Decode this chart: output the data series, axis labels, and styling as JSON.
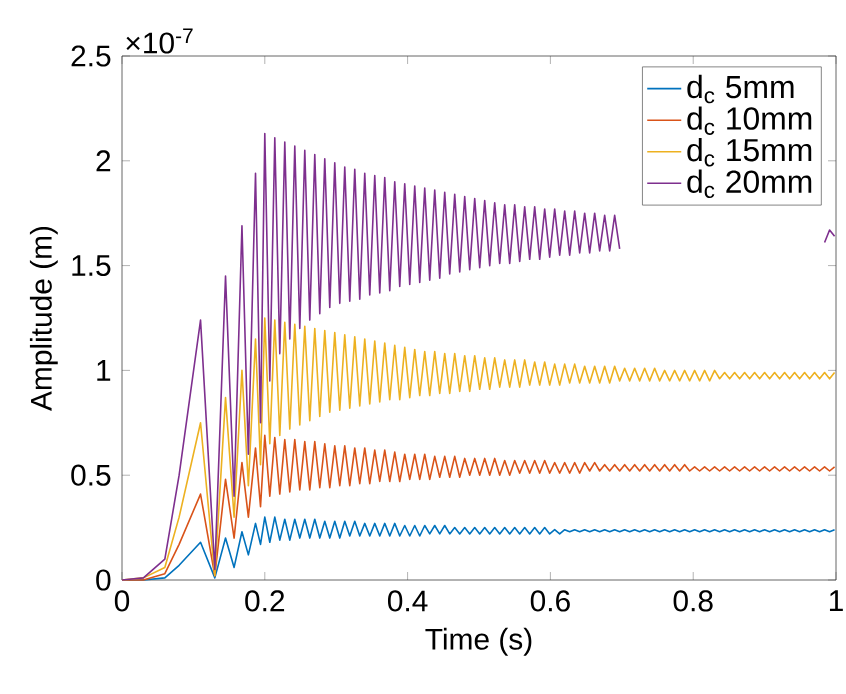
{
  "chart_data": {
    "type": "line",
    "xlabel": "Time (s)",
    "ylabel": "Amplitude (m)",
    "annotations": [
      "×10$^{-7}$"
    ],
    "xlim": [
      0,
      1
    ],
    "ylim": [
      0,
      2.5
    ],
    "xticks": [
      0,
      0.2,
      0.4,
      0.6,
      0.8,
      1
    ],
    "yticks": [
      0,
      0.5,
      1,
      1.5,
      2,
      2.5
    ],
    "grid": false,
    "legend": "top right",
    "x": [
      0,
      0.03,
      0.06,
      0.08,
      0.11,
      0.13,
      0.145,
      0.157,
      0.168,
      0.177,
      0.187,
      0.194,
      0.2,
      0.207,
      0.214,
      0.221,
      0.228,
      0.235,
      0.242,
      0.249,
      0.256,
      0.263,
      0.27,
      0.277,
      0.284,
      0.291,
      0.298,
      0.305,
      0.312,
      0.319,
      0.326,
      0.333,
      0.34,
      0.347,
      0.354,
      0.361,
      0.368,
      0.375,
      0.382,
      0.389,
      0.396,
      0.403,
      0.41,
      0.417,
      0.424,
      0.431,
      0.438,
      0.445,
      0.452,
      0.459,
      0.466,
      0.473,
      0.48,
      0.487,
      0.494,
      0.501,
      0.508,
      0.515,
      0.522,
      0.529,
      0.536,
      0.543,
      0.55,
      0.557,
      0.564,
      0.571,
      0.578,
      0.585,
      0.592,
      0.599,
      0.606,
      0.613,
      0.62,
      0.627,
      0.634,
      0.641,
      0.648,
      0.655,
      0.662,
      0.669,
      0.676,
      0.683,
      0.69,
      0.697,
      0.704,
      0.711,
      0.718,
      0.725,
      0.732,
      0.739,
      0.746,
      0.753,
      0.76,
      0.767,
      0.774,
      0.781,
      0.788,
      0.795,
      0.802,
      0.809,
      0.816,
      0.823,
      0.83,
      0.837,
      0.844,
      0.851,
      0.858,
      0.865,
      0.872,
      0.879,
      0.886,
      0.893,
      0.9,
      0.907,
      0.914,
      0.921,
      0.928,
      0.935,
      0.942,
      0.949,
      0.956,
      0.963,
      0.97,
      0.977,
      0.984,
      0.991,
      0.998
    ],
    "series": [
      {
        "name": "d$_{c}$ 5mm",
        "color": "#0072bd",
        "values": [
          0,
          0,
          0.01,
          0.07,
          0.18,
          0.01,
          0.2,
          0.06,
          0.23,
          0.12,
          0.27,
          0.17,
          0.3,
          0.18,
          0.3,
          0.19,
          0.29,
          0.19,
          0.29,
          0.2,
          0.29,
          0.2,
          0.29,
          0.2,
          0.28,
          0.2,
          0.28,
          0.2,
          0.28,
          0.21,
          0.28,
          0.21,
          0.27,
          0.21,
          0.27,
          0.21,
          0.27,
          0.21,
          0.27,
          0.21,
          0.26,
          0.21,
          0.26,
          0.21,
          0.26,
          0.22,
          0.26,
          0.22,
          0.26,
          0.22,
          0.25,
          0.22,
          0.25,
          0.22,
          0.25,
          0.22,
          0.25,
          0.22,
          0.25,
          0.22,
          0.25,
          0.22,
          0.25,
          0.22,
          0.25,
          0.22,
          0.25,
          0.22,
          0.25,
          0.22,
          0.24,
          0.22,
          0.24,
          0.23,
          0.24,
          0.23,
          0.24,
          0.23,
          0.24,
          0.23,
          0.24,
          0.23,
          0.24,
          0.23,
          0.24,
          0.23,
          0.24,
          0.23,
          0.24,
          0.23,
          0.24,
          0.23,
          0.24,
          0.23,
          0.24,
          0.23,
          0.24,
          0.23,
          0.24,
          0.23,
          0.24,
          0.23,
          0.24,
          0.23,
          0.24,
          0.23,
          0.24,
          0.23,
          0.24,
          0.23,
          0.24,
          0.23,
          0.24,
          0.23,
          0.24,
          0.23,
          0.24,
          0.23,
          0.24,
          0.23,
          0.24,
          0.23,
          0.24,
          0.23,
          0.24,
          0.23,
          0.24
        ]
      },
      {
        "name": "d$_{c}$ 10mm",
        "color": "#d95319",
        "values": [
          0,
          0,
          0.03,
          0.17,
          0.41,
          0.02,
          0.48,
          0.2,
          0.56,
          0.3,
          0.63,
          0.35,
          0.69,
          0.4,
          0.68,
          0.41,
          0.67,
          0.42,
          0.67,
          0.43,
          0.66,
          0.43,
          0.66,
          0.44,
          0.65,
          0.44,
          0.64,
          0.45,
          0.64,
          0.45,
          0.63,
          0.46,
          0.63,
          0.46,
          0.62,
          0.47,
          0.62,
          0.47,
          0.61,
          0.47,
          0.6,
          0.48,
          0.6,
          0.48,
          0.6,
          0.48,
          0.59,
          0.49,
          0.59,
          0.49,
          0.59,
          0.49,
          0.58,
          0.5,
          0.58,
          0.5,
          0.58,
          0.5,
          0.58,
          0.5,
          0.57,
          0.5,
          0.57,
          0.51,
          0.57,
          0.51,
          0.57,
          0.51,
          0.57,
          0.51,
          0.56,
          0.51,
          0.56,
          0.51,
          0.56,
          0.51,
          0.56,
          0.52,
          0.56,
          0.52,
          0.55,
          0.52,
          0.55,
          0.52,
          0.55,
          0.52,
          0.55,
          0.52,
          0.55,
          0.52,
          0.55,
          0.52,
          0.55,
          0.52,
          0.55,
          0.52,
          0.55,
          0.52,
          0.54,
          0.52,
          0.54,
          0.52,
          0.54,
          0.52,
          0.54,
          0.52,
          0.54,
          0.52,
          0.54,
          0.52,
          0.54,
          0.52,
          0.54,
          0.52,
          0.54,
          0.52,
          0.54,
          0.52,
          0.54,
          0.52,
          0.54,
          0.52,
          0.54,
          0.52,
          0.54,
          0.52,
          0.54
        ]
      },
      {
        "name": "d$_{c}$ 15mm",
        "color": "#edb120",
        "values": [
          0,
          0.01,
          0.06,
          0.3,
          0.75,
          0.02,
          0.87,
          0.3,
          1.0,
          0.45,
          1.15,
          0.55,
          1.25,
          0.65,
          1.24,
          0.69,
          1.23,
          0.72,
          1.22,
          0.74,
          1.21,
          0.76,
          1.2,
          0.78,
          1.19,
          0.8,
          1.18,
          0.81,
          1.17,
          0.82,
          1.16,
          0.83,
          1.15,
          0.84,
          1.14,
          0.85,
          1.13,
          0.86,
          1.12,
          0.86,
          1.11,
          0.87,
          1.1,
          0.88,
          1.09,
          0.88,
          1.09,
          0.89,
          1.08,
          0.89,
          1.08,
          0.9,
          1.07,
          0.9,
          1.07,
          0.91,
          1.06,
          0.91,
          1.06,
          0.92,
          1.05,
          0.92,
          1.05,
          0.92,
          1.05,
          0.93,
          1.04,
          0.93,
          1.04,
          0.93,
          1.03,
          0.93,
          1.03,
          0.94,
          1.03,
          0.94,
          1.02,
          0.94,
          1.02,
          0.94,
          1.02,
          0.94,
          1.02,
          0.95,
          1.01,
          0.95,
          1.01,
          0.95,
          1.01,
          0.95,
          1.01,
          0.95,
          1.0,
          0.95,
          1.0,
          0.95,
          1.0,
          0.95,
          1.0,
          0.95,
          1.0,
          0.95,
          1.0,
          0.96,
          0.99,
          0.96,
          0.99,
          0.96,
          0.99,
          0.96,
          0.99,
          0.96,
          0.99,
          0.96,
          0.99,
          0.96,
          0.99,
          0.96,
          0.99,
          0.96,
          0.99,
          0.96,
          0.99,
          0.96,
          0.99,
          0.96,
          0.99
        ]
      },
      {
        "name": "d$_{c}$ 20mm",
        "color": "#7e2f8e",
        "values": [
          0,
          0.01,
          0.1,
          0.5,
          1.24,
          0.05,
          1.45,
          0.4,
          1.69,
          0.6,
          1.94,
          0.75,
          2.13,
          0.95,
          2.11,
          1.08,
          2.09,
          1.15,
          2.07,
          1.2,
          2.05,
          1.24,
          2.03,
          1.27,
          2.01,
          1.3,
          1.99,
          1.32,
          1.97,
          1.33,
          1.96,
          1.34,
          1.94,
          1.36,
          1.93,
          1.37,
          1.92,
          1.38,
          1.9,
          1.4,
          1.89,
          1.41,
          1.88,
          1.42,
          1.87,
          1.43,
          1.86,
          1.44,
          1.85,
          1.46,
          1.84,
          1.47,
          1.83,
          1.48,
          1.82,
          1.49,
          1.81,
          1.5,
          1.8,
          1.51,
          1.79,
          1.51,
          1.79,
          1.52,
          1.78,
          1.53,
          1.78,
          1.53,
          1.77,
          1.54,
          1.77,
          1.55,
          1.76,
          1.55,
          1.76,
          1.56,
          1.75,
          1.56,
          1.75,
          1.57,
          1.74,
          1.57,
          1.74,
          1.58,
          null,
          null,
          null,
          null,
          null,
          null,
          null,
          null,
          null,
          null,
          null,
          null,
          null,
          null,
          null,
          null,
          null,
          null,
          null,
          null,
          null,
          null,
          null,
          null,
          null,
          null,
          null,
          null,
          null,
          null,
          null,
          null,
          null,
          null,
          null,
          null,
          null,
          null,
          null,
          null,
          1.61,
          1.67,
          1.64
        ]
      }
    ]
  }
}
